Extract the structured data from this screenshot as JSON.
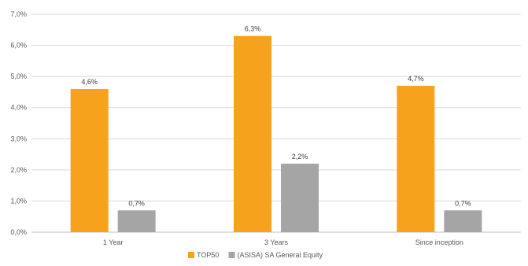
{
  "chart_data": {
    "type": "bar",
    "title": "",
    "xlabel": "",
    "ylabel": "",
    "categories": [
      "1 Year",
      "3 Years",
      "Since inception"
    ],
    "series": [
      {
        "name": "TOP50",
        "values": [
          4.6,
          6.3,
          4.7
        ],
        "labels": [
          "4,6%",
          "6,3%",
          "4,7%"
        ],
        "color": "#f7a21c"
      },
      {
        "name": "(ASISA) SA General Equity",
        "values": [
          0.7,
          2.2,
          0.7
        ],
        "labels": [
          "0,7%",
          "2,2%",
          "0,7%"
        ],
        "color": "#a5a5a5"
      }
    ],
    "ylim": [
      0,
      7
    ],
    "yticks": [
      0,
      1,
      2,
      3,
      4,
      5,
      6,
      7
    ],
    "ytick_labels": [
      "0,0%",
      "1,0%",
      "2,0%",
      "3,0%",
      "4,0%",
      "5,0%",
      "6,0%",
      "7,0%"
    ],
    "grid": true,
    "legend_position": "bottom"
  }
}
